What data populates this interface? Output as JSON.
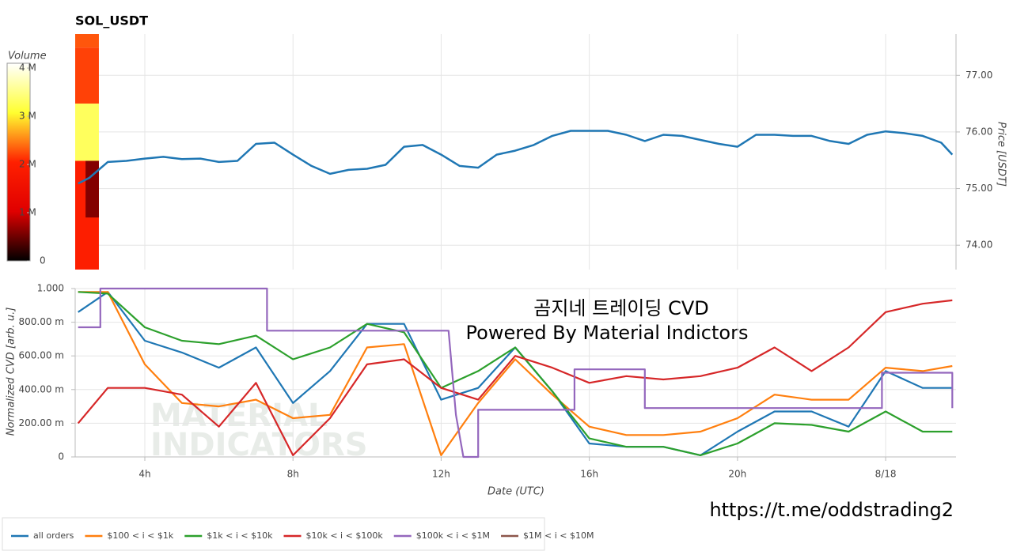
{
  "chart_data": [
    {
      "type": "line",
      "title": "SOL_USDT",
      "ylabel": "Price [USDT]",
      "color": "#1f77b4",
      "x": [
        2.2,
        2.5,
        3,
        3.5,
        4,
        4.5,
        5,
        5.5,
        6,
        6.5,
        7,
        7.5,
        8,
        8.5,
        9,
        9.5,
        10,
        10.5,
        11,
        11.5,
        12,
        12.5,
        13,
        13.5,
        14,
        14.5,
        15,
        15.5,
        16,
        16.5,
        17,
        17.5,
        18,
        18.5,
        19,
        19.5,
        20,
        20.5,
        21,
        21.5,
        22,
        22.5,
        23,
        23.5,
        24,
        24.5,
        25,
        25.5,
        25.8
      ],
      "values": [
        75.09,
        75.19,
        75.47,
        75.49,
        75.53,
        75.56,
        75.52,
        75.53,
        75.47,
        75.49,
        75.79,
        75.81,
        75.6,
        75.4,
        75.26,
        75.33,
        75.35,
        75.42,
        75.74,
        75.77,
        75.6,
        75.4,
        75.37,
        75.6,
        75.67,
        75.77,
        75.93,
        76.02,
        76.02,
        76.02,
        75.95,
        75.84,
        75.95,
        75.93,
        75.86,
        75.79,
        75.74,
        75.95,
        75.95,
        75.93,
        75.93,
        75.84,
        75.79,
        75.95,
        76.01,
        75.98,
        75.93,
        75.81,
        75.6
      ],
      "xlim": [
        2.12,
        25.9
      ],
      "ylim": [
        73.57,
        77.73
      ],
      "yticks": [
        {
          "value": 74,
          "label": "74.00"
        },
        {
          "value": 75,
          "label": "75.00"
        },
        {
          "value": 76,
          "label": "76.00"
        },
        {
          "value": 77,
          "label": "77.00"
        }
      ],
      "grid": true,
      "heatmap": {
        "label": "Volume",
        "colormap": [
          "#000000",
          "#e00000",
          "#ff2000",
          "#ffff30",
          "#ffffff"
        ],
        "lim": [
          0,
          4100000
        ],
        "ticks": [
          0,
          {
            "value": 1000000,
            "label": "1 M"
          },
          {
            "value": 2000000,
            "label": "2 M"
          },
          {
            "value": 3000000,
            "label": "3 M"
          },
          {
            "value": 4000000,
            "label": "4 M"
          }
        ],
        "cells": [
          {
            "x": [
              2.12,
              2.76
            ],
            "y": [
              77.49,
              77.73
            ],
            "value": 2300000
          },
          {
            "x": [
              2.12,
              2.76
            ],
            "y": [
              76.5,
              77.49
            ],
            "value": 2200000
          },
          {
            "x": [
              2.12,
              2.76
            ],
            "y": [
              75.49,
              76.5
            ],
            "value": 3300000
          },
          {
            "x": [
              2.12,
              2.76
            ],
            "y": [
              73.57,
              75.49
            ],
            "value": 2000000
          },
          {
            "x": [
              2.4,
              2.76
            ],
            "y": [
              74.49,
              75.49
            ],
            "value": 600000
          }
        ]
      }
    },
    {
      "type": "line",
      "xlabel": "Date (UTC)",
      "ylabel": "Normalized CVD [arb. u.]",
      "x": [
        2.2,
        3,
        4,
        5,
        6,
        7,
        8,
        9,
        10,
        11,
        12,
        13,
        14,
        15,
        16,
        17,
        18,
        19,
        20,
        21,
        22,
        23,
        24,
        25,
        25.8
      ],
      "xlim": [
        2.12,
        25.9
      ],
      "ylim": [
        0,
        1
      ],
      "xticks": [
        {
          "value": 4,
          "label": "4h"
        },
        {
          "value": 8,
          "label": "8h"
        },
        {
          "value": 12,
          "label": "12h"
        },
        {
          "value": 16,
          "label": "16h"
        },
        {
          "value": 20,
          "label": "20h"
        },
        {
          "value": 24,
          "label": "8/18"
        }
      ],
      "yticks": [
        0,
        {
          "value": 0.2,
          "label": "200.00 m"
        },
        {
          "value": 0.4,
          "label": "400.00 m"
        },
        {
          "value": 0.6,
          "label": "600.00 m"
        },
        {
          "value": 0.8,
          "label": "800.00 m"
        },
        {
          "value": 1,
          "label": "1.000"
        }
      ],
      "grid": true,
      "legend": "bottom",
      "annotations": [
        "곰지네 트레이딩 CVD",
        "Powered By Material Indictors",
        "https://t.me/oddstrading2",
        "MATERIAL",
        "INDICATORS"
      ],
      "series": [
        {
          "name": "all orders",
          "color": "#1f77b4",
          "values": [
            0.86,
            0.98,
            0.69,
            0.62,
            0.53,
            0.65,
            0.32,
            0.51,
            0.79,
            0.79,
            0.34,
            0.41,
            0.65,
            0.39,
            0.08,
            0.06,
            0.06,
            0.01,
            0.15,
            0.27,
            0.27,
            0.18,
            0.51,
            0.41,
            0.41
          ]
        },
        {
          "name": "$100 < i < $1k",
          "color": "#ff7f0e",
          "values": [
            0.98,
            0.98,
            0.55,
            0.32,
            0.3,
            0.34,
            0.23,
            0.25,
            0.65,
            0.67,
            0.01,
            0.32,
            0.58,
            0.37,
            0.18,
            0.13,
            0.13,
            0.15,
            0.23,
            0.37,
            0.34,
            0.34,
            0.53,
            0.51,
            0.54
          ]
        },
        {
          "name": "$1k < i < $10k",
          "color": "#2ca02c",
          "values": [
            0.98,
            0.97,
            0.77,
            0.69,
            0.67,
            0.72,
            0.58,
            0.65,
            0.79,
            0.74,
            0.41,
            0.51,
            0.65,
            0.39,
            0.11,
            0.06,
            0.06,
            0.01,
            0.08,
            0.2,
            0.19,
            0.15,
            0.27,
            0.15,
            0.15
          ]
        },
        {
          "name": "$10k < i < $100k",
          "color": "#d62728",
          "values": [
            0.2,
            0.41,
            0.41,
            0.37,
            0.18,
            0.44,
            0.01,
            0.23,
            0.55,
            0.58,
            0.41,
            0.34,
            0.6,
            0.53,
            0.44,
            0.48,
            0.46,
            0.48,
            0.53,
            0.65,
            0.51,
            0.65,
            0.86,
            0.91,
            0.93
          ]
        },
        {
          "name": "$100k < i < $1M",
          "color": "#9467bd",
          "x": [
            2.2,
            2.8,
            2.8,
            7.3,
            7.3,
            12.2,
            12.4,
            12.6,
            13,
            13,
            15.6,
            15.6,
            17.5,
            17.5,
            23.9,
            23.9,
            25.8,
            25.8
          ],
          "values": [
            0.77,
            0.77,
            1,
            1,
            0.75,
            0.75,
            0.25,
            0,
            0,
            0.28,
            0.28,
            0.52,
            0.52,
            0.29,
            0.29,
            0.5,
            0.5,
            0.29
          ]
        },
        {
          "name": "$1M < i < $10M",
          "color": "#8c564b",
          "values": [
            null,
            null,
            null,
            null,
            null,
            null,
            null,
            null,
            null,
            null,
            null,
            null,
            null,
            null,
            null,
            null,
            null,
            null,
            null,
            null,
            null,
            null,
            null,
            null,
            null
          ]
        }
      ]
    }
  ]
}
